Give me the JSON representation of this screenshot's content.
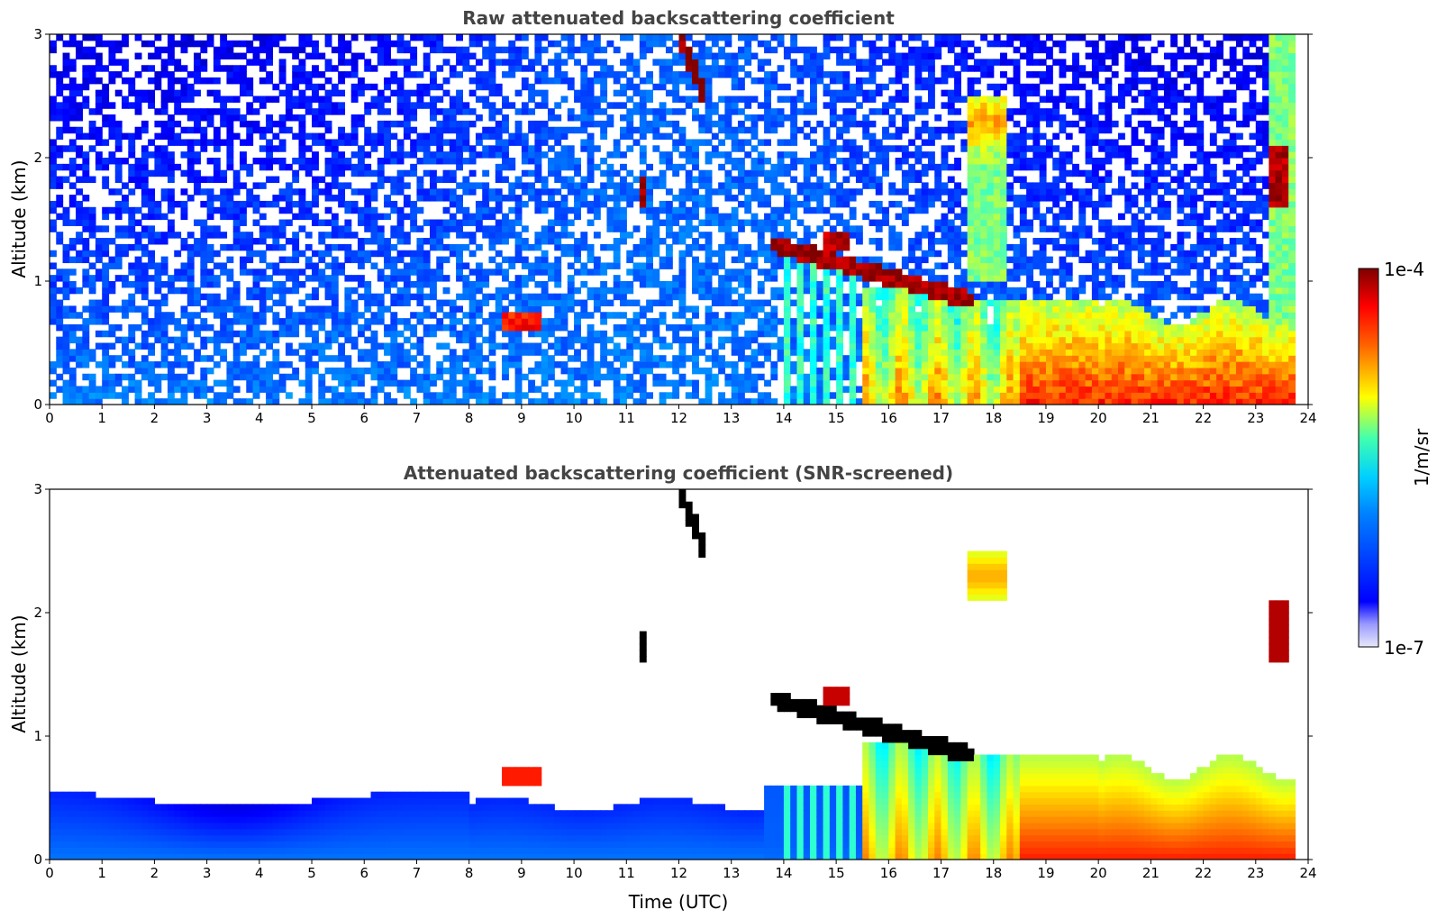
{
  "chart_data": [
    {
      "type": "heatmap",
      "title": "Raw attenuated backscattering coefficient",
      "xlabel": "",
      "ylabel": "Altitude (km)",
      "xlim": [
        0,
        24
      ],
      "ylim": [
        0,
        3
      ],
      "xticks": [
        "0",
        "1",
        "2",
        "3",
        "4",
        "5",
        "6",
        "7",
        "8",
        "9",
        "10",
        "11",
        "12",
        "13",
        "14",
        "15",
        "16",
        "17",
        "18",
        "19",
        "20",
        "21",
        "22",
        "23",
        "24"
      ],
      "yticks": [
        "0",
        "1",
        "2",
        "3"
      ],
      "screened": false,
      "features": [
        {
          "desc": "boundary layer aerosol",
          "time": [
            0,
            15.5
          ],
          "alt": [
            0,
            0.5
          ],
          "level": "low"
        },
        {
          "desc": "aerosol layer",
          "time": [
            8.6,
            9.4
          ],
          "alt": [
            0.6,
            0.75
          ],
          "level": "high"
        },
        {
          "desc": "thin cloud streak",
          "time": [
            12.0,
            12.5
          ],
          "alt": [
            2.5,
            3.0
          ],
          "level": "very-high"
        },
        {
          "desc": "small cloud",
          "time": [
            11.3,
            11.4
          ],
          "alt": [
            1.6,
            1.85
          ],
          "level": "very-high"
        },
        {
          "desc": "cloud layer",
          "time": [
            13.8,
            17.6
          ],
          "alt": [
            0.8,
            1.4
          ],
          "level": "very-high"
        },
        {
          "desc": "afternoon mixed layer",
          "time": [
            15.5,
            23.5
          ],
          "alt": [
            0,
            1.0
          ],
          "level": "high"
        },
        {
          "desc": "cloud",
          "time": [
            23.3,
            23.6
          ],
          "alt": [
            1.6,
            2.0
          ],
          "level": "very-high"
        }
      ]
    },
    {
      "type": "heatmap",
      "title": "Attenuated backscattering coefficient (SNR-screened)",
      "xlabel": "Time (UTC)",
      "ylabel": "Altitude (km)",
      "xlim": [
        0,
        24
      ],
      "ylim": [
        0,
        3
      ],
      "xticks": [
        "0",
        "1",
        "2",
        "3",
        "4",
        "5",
        "6",
        "7",
        "8",
        "9",
        "10",
        "11",
        "12",
        "13",
        "14",
        "15",
        "16",
        "17",
        "18",
        "19",
        "20",
        "21",
        "22",
        "23",
        "24"
      ],
      "yticks": [
        "0",
        "1",
        "2",
        "3"
      ],
      "screened": true
    }
  ],
  "colorbar": {
    "label": "1/m/sr",
    "max_label": "1e-4",
    "min_label": "1e-7",
    "colormap": "jet",
    "colors": [
      "#e6e6fa",
      "#0000ff",
      "#00c8ff",
      "#ffff00",
      "#ff2000",
      "#7f0000"
    ]
  }
}
